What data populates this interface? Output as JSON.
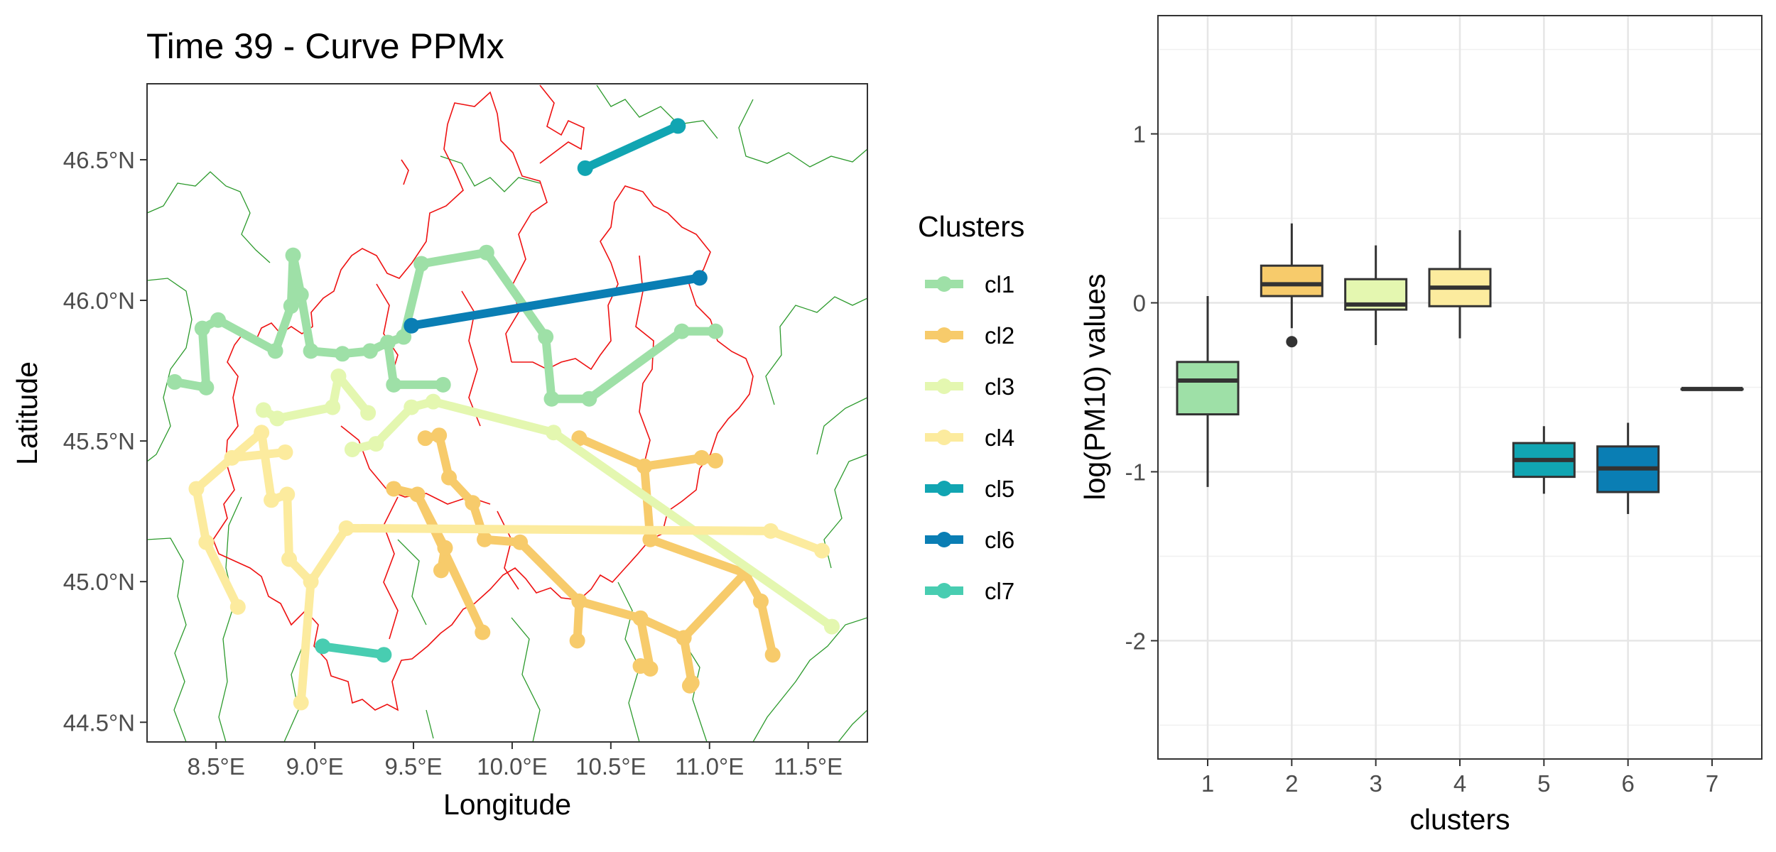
{
  "chart_data": [
    {
      "type": "scatter",
      "title": "Time 39 - Curve PPMx",
      "xlabel": "Longitude",
      "ylabel": "Latitude",
      "xlim": [
        8.15,
        11.8
      ],
      "ylim": [
        44.43,
        46.77
      ],
      "x_ticks": [
        8.5,
        9.0,
        9.5,
        10.0,
        10.5,
        11.0,
        11.5
      ],
      "x_tick_labels": [
        "8.5°E",
        "9.0°E",
        "9.5°E",
        "10.0°E",
        "10.5°E",
        "11.0°E",
        "11.5°E"
      ],
      "y_ticks": [
        44.5,
        45.0,
        45.5,
        46.0,
        46.5
      ],
      "y_tick_labels": [
        "44.5°N",
        "45.0°N",
        "45.5°N",
        "46.0°N",
        "46.5°N"
      ],
      "grid": false,
      "legend": {
        "title": "Clusters",
        "placement": "right"
      },
      "colors": {
        "cl1": "#9EE0A7",
        "cl2": "#F7CB6B",
        "cl3": "#E4F7B0",
        "cl4": "#FCEB9E",
        "cl5": "#11A5B2",
        "cl6": "#0A7EB4",
        "cl7": "#48CDB1",
        "region_border": "#ee1111",
        "province_border": "#2c9a2c"
      },
      "series": [
        {
          "name": "cl1",
          "points": [
            [
              8.29,
              45.71
            ],
            [
              8.45,
              45.69
            ],
            [
              8.43,
              45.9
            ],
            [
              8.51,
              45.93
            ],
            [
              8.8,
              45.82
            ],
            [
              8.88,
              45.98
            ],
            [
              8.89,
              46.16
            ],
            [
              8.93,
              46.02
            ],
            [
              8.98,
              45.82
            ],
            [
              9.14,
              45.81
            ],
            [
              9.28,
              45.82
            ],
            [
              9.37,
              45.85
            ],
            [
              9.45,
              45.87
            ],
            [
              9.54,
              46.13
            ],
            [
              9.87,
              46.17
            ],
            [
              10.17,
              45.87
            ],
            [
              10.2,
              45.65
            ],
            [
              10.39,
              45.65
            ],
            [
              10.86,
              45.89
            ],
            [
              11.03,
              45.89
            ]
          ],
          "connections": [
            [
              0,
              1
            ],
            [
              1,
              2
            ],
            [
              2,
              3
            ],
            [
              3,
              4
            ],
            [
              4,
              5
            ],
            [
              5,
              6
            ],
            [
              6,
              7
            ],
            [
              7,
              8
            ],
            [
              8,
              9
            ],
            [
              9,
              10
            ],
            [
              10,
              11
            ],
            [
              11,
              12
            ],
            [
              12,
              13
            ],
            [
              13,
              14
            ],
            [
              14,
              15
            ],
            [
              15,
              16
            ],
            [
              16,
              17
            ],
            [
              17,
              18
            ],
            [
              18,
              19
            ],
            [
              11,
              20
            ],
            [
              20,
              21
            ]
          ],
          "extra_points": [
            [
              9.4,
              45.7
            ],
            [
              9.65,
              45.7
            ]
          ]
        },
        {
          "name": "cl2",
          "points": [
            [
              10.34,
              45.51
            ],
            [
              10.67,
              45.41
            ],
            [
              10.96,
              45.44
            ],
            [
              11.03,
              45.43
            ],
            [
              9.56,
              45.51
            ],
            [
              9.63,
              45.52
            ],
            [
              9.68,
              45.37
            ],
            [
              9.8,
              45.28
            ],
            [
              9.86,
              45.15
            ],
            [
              10.04,
              45.14
            ],
            [
              10.34,
              44.93
            ],
            [
              10.33,
              44.79
            ],
            [
              10.65,
              44.87
            ],
            [
              10.7,
              44.69
            ],
            [
              10.87,
              44.8
            ],
            [
              10.91,
              44.64
            ],
            [
              11.18,
              45.03
            ],
            [
              11.26,
              44.93
            ],
            [
              11.32,
              44.74
            ],
            [
              9.4,
              45.33
            ],
            [
              9.52,
              45.31
            ],
            [
              9.66,
              45.12
            ],
            [
              9.64,
              45.04
            ],
            [
              9.85,
              44.82
            ],
            [
              10.7,
              45.15
            ],
            [
              10.65,
              44.7
            ],
            [
              10.9,
              44.63
            ]
          ],
          "connections": [
            [
              0,
              1
            ],
            [
              1,
              2
            ],
            [
              2,
              3
            ],
            [
              4,
              5
            ],
            [
              5,
              6
            ],
            [
              6,
              7
            ],
            [
              7,
              8
            ],
            [
              8,
              9
            ],
            [
              9,
              10
            ],
            [
              10,
              11
            ],
            [
              10,
              12
            ],
            [
              12,
              13
            ],
            [
              12,
              14
            ],
            [
              14,
              15
            ],
            [
              14,
              16
            ],
            [
              16,
              17
            ],
            [
              17,
              18
            ],
            [
              19,
              20
            ],
            [
              20,
              21
            ],
            [
              21,
              22
            ],
            [
              20,
              23
            ],
            [
              1,
              24
            ],
            [
              24,
              16
            ]
          ]
        },
        {
          "name": "cl3",
          "points": [
            [
              8.74,
              45.61
            ],
            [
              8.81,
              45.58
            ],
            [
              9.09,
              45.62
            ],
            [
              9.12,
              45.73
            ],
            [
              9.27,
              45.6
            ],
            [
              9.19,
              45.47
            ],
            [
              9.31,
              45.49
            ],
            [
              9.49,
              45.62
            ],
            [
              9.6,
              45.64
            ],
            [
              10.21,
              45.53
            ],
            [
              11.62,
              44.84
            ]
          ],
          "connections": [
            [
              0,
              1
            ],
            [
              1,
              2
            ],
            [
              2,
              3
            ],
            [
              3,
              4
            ],
            [
              5,
              6
            ],
            [
              6,
              7
            ],
            [
              7,
              8
            ],
            [
              8,
              9
            ],
            [
              9,
              10
            ]
          ]
        },
        {
          "name": "cl4",
          "points": [
            [
              8.4,
              45.33
            ],
            [
              8.45,
              45.14
            ],
            [
              8.61,
              44.91
            ],
            [
              8.58,
              45.44
            ],
            [
              8.85,
              45.46
            ],
            [
              8.78,
              45.29
            ],
            [
              8.87,
              45.08
            ],
            [
              8.98,
              45.0
            ],
            [
              8.93,
              44.57
            ],
            [
              9.16,
              45.19
            ],
            [
              11.31,
              45.18
            ],
            [
              11.57,
              45.11
            ],
            [
              8.73,
              45.53
            ],
            [
              8.86,
              45.31
            ]
          ],
          "connections": [
            [
              0,
              1
            ],
            [
              1,
              2
            ],
            [
              0,
              3
            ],
            [
              3,
              4
            ],
            [
              3,
              12
            ],
            [
              12,
              5
            ],
            [
              5,
              13
            ],
            [
              13,
              6
            ],
            [
              6,
              7
            ],
            [
              7,
              8
            ],
            [
              7,
              9
            ],
            [
              9,
              10
            ],
            [
              10,
              11
            ]
          ]
        },
        {
          "name": "cl5",
          "points": [
            [
              10.37,
              46.47
            ],
            [
              10.84,
              46.62
            ]
          ],
          "connections": [
            [
              0,
              1
            ]
          ]
        },
        {
          "name": "cl6",
          "points": [
            [
              9.49,
              45.91
            ],
            [
              10.95,
              46.08
            ]
          ],
          "connections": [
            [
              0,
              1
            ]
          ]
        },
        {
          "name": "cl7",
          "points": [
            [
              9.04,
              44.77
            ],
            [
              9.35,
              44.74
            ]
          ],
          "connections": [
            [
              0,
              1
            ]
          ]
        }
      ]
    },
    {
      "type": "box",
      "xlabel": "clusters",
      "ylabel": "log(PM10) values",
      "categories": [
        "1",
        "2",
        "3",
        "4",
        "5",
        "6",
        "7"
      ],
      "ylim": [
        -2.7,
        1.7
      ],
      "y_ticks": [
        1,
        0,
        -1,
        -2
      ],
      "y_tick_labels": [
        "1",
        "0",
        "-1",
        "-2"
      ],
      "grid": true,
      "boxes": [
        {
          "cluster": "1",
          "whisker_low": -1.09,
          "q1": -0.66,
          "median": -0.46,
          "q3": -0.35,
          "whisker_high": 0.04,
          "outliers": [],
          "color": "#9EE0A7"
        },
        {
          "cluster": "2",
          "whisker_low": -0.15,
          "q1": 0.04,
          "median": 0.11,
          "q3": 0.22,
          "whisker_high": 0.47,
          "outliers": [
            -0.23
          ],
          "color": "#F7CB6B"
        },
        {
          "cluster": "3",
          "whisker_low": -0.25,
          "q1": -0.04,
          "median": -0.01,
          "q3": 0.14,
          "whisker_high": 0.34,
          "outliers": [],
          "color": "#E4F7B0"
        },
        {
          "cluster": "4",
          "whisker_low": -0.21,
          "q1": -0.02,
          "median": 0.09,
          "q3": 0.2,
          "whisker_high": 0.43,
          "outliers": [],
          "color": "#FCEB9E"
        },
        {
          "cluster": "5",
          "whisker_low": -1.13,
          "q1": -1.03,
          "median": -0.93,
          "q3": -0.83,
          "whisker_high": -0.73,
          "outliers": [],
          "color": "#11A5B2"
        },
        {
          "cluster": "6",
          "whisker_low": -1.25,
          "q1": -1.12,
          "median": -0.98,
          "q3": -0.85,
          "whisker_high": -0.71,
          "outliers": [],
          "color": "#0A7EB4"
        },
        {
          "cluster": "7",
          "whisker_low": -0.51,
          "q1": -0.51,
          "median": -0.51,
          "q3": -0.51,
          "whisker_high": -0.51,
          "outliers": [],
          "color": "#48CDB1"
        }
      ]
    }
  ]
}
